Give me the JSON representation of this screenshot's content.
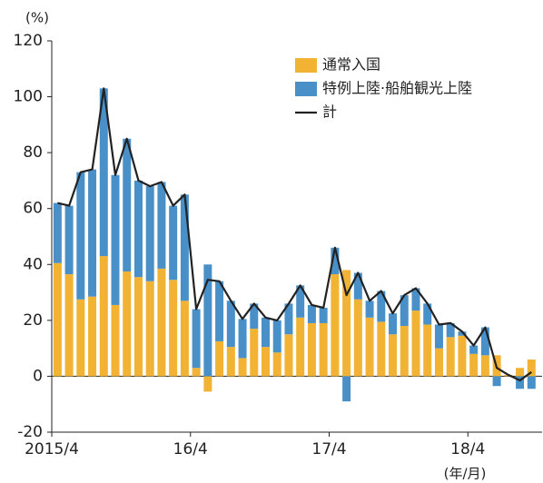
{
  "chart_data": {
    "type": "bar",
    "y_label": "(%)",
    "x_label": "(年/月)",
    "categories": [
      "2015/4",
      null,
      null,
      null,
      null,
      null,
      null,
      null,
      null,
      null,
      null,
      null,
      "16/4",
      null,
      null,
      null,
      null,
      null,
      null,
      null,
      null,
      null,
      null,
      null,
      "17/4",
      null,
      null,
      null,
      null,
      null,
      null,
      null,
      null,
      null,
      null,
      null,
      "18/4",
      null,
      null,
      null,
      null,
      null
    ],
    "series": [
      {
        "name": "通常入国",
        "color": "#f2b233",
        "stack": true,
        "values": [
          40.5,
          36.5,
          27.5,
          28.5,
          43,
          25.5,
          37.5,
          35.5,
          34,
          38.5,
          34.5,
          27,
          3,
          -5.5,
          12.5,
          10.5,
          6.5,
          17,
          10.5,
          8.5,
          15,
          21,
          19,
          19,
          36.5,
          38,
          27.5,
          21,
          19.5,
          15,
          18,
          23.5,
          18.5,
          10,
          14,
          14.5,
          8,
          7.5,
          7.5,
          0.5,
          3,
          6
        ]
      },
      {
        "name": "特例上陸·船舶観光上陸",
        "color": "#4a90c8",
        "stack": true,
        "values": [
          21.5,
          24.5,
          45.5,
          45.5,
          60,
          46.5,
          47.5,
          34.5,
          34,
          31,
          26.5,
          38,
          21,
          40,
          21.5,
          16.5,
          14,
          9,
          10.5,
          11.5,
          11,
          11.5,
          6.5,
          5.5,
          9.5,
          -9,
          9.5,
          6,
          11,
          7.5,
          11,
          8,
          7.5,
          8.5,
          5,
          1.5,
          3,
          10,
          -3.5,
          0,
          -4.5,
          -4.5
        ]
      },
      {
        "name": "計",
        "color": "#222222",
        "line": true,
        "values": [
          62,
          61,
          73,
          74,
          103,
          72,
          85,
          70,
          68,
          69.5,
          61,
          65,
          24,
          34.5,
          34,
          27,
          20.5,
          26,
          21,
          20,
          26,
          32.5,
          25.5,
          24.5,
          46,
          29,
          37,
          27,
          30.5,
          22.5,
          29,
          31.5,
          26,
          18.5,
          19,
          16,
          11,
          17.5,
          3,
          0.5,
          -1.5,
          1.5
        ]
      }
    ],
    "ylim": [
      -20,
      120
    ],
    "yticks": [
      -20,
      0,
      20,
      40,
      60,
      80,
      100,
      120
    ],
    "legend": "top-right"
  }
}
